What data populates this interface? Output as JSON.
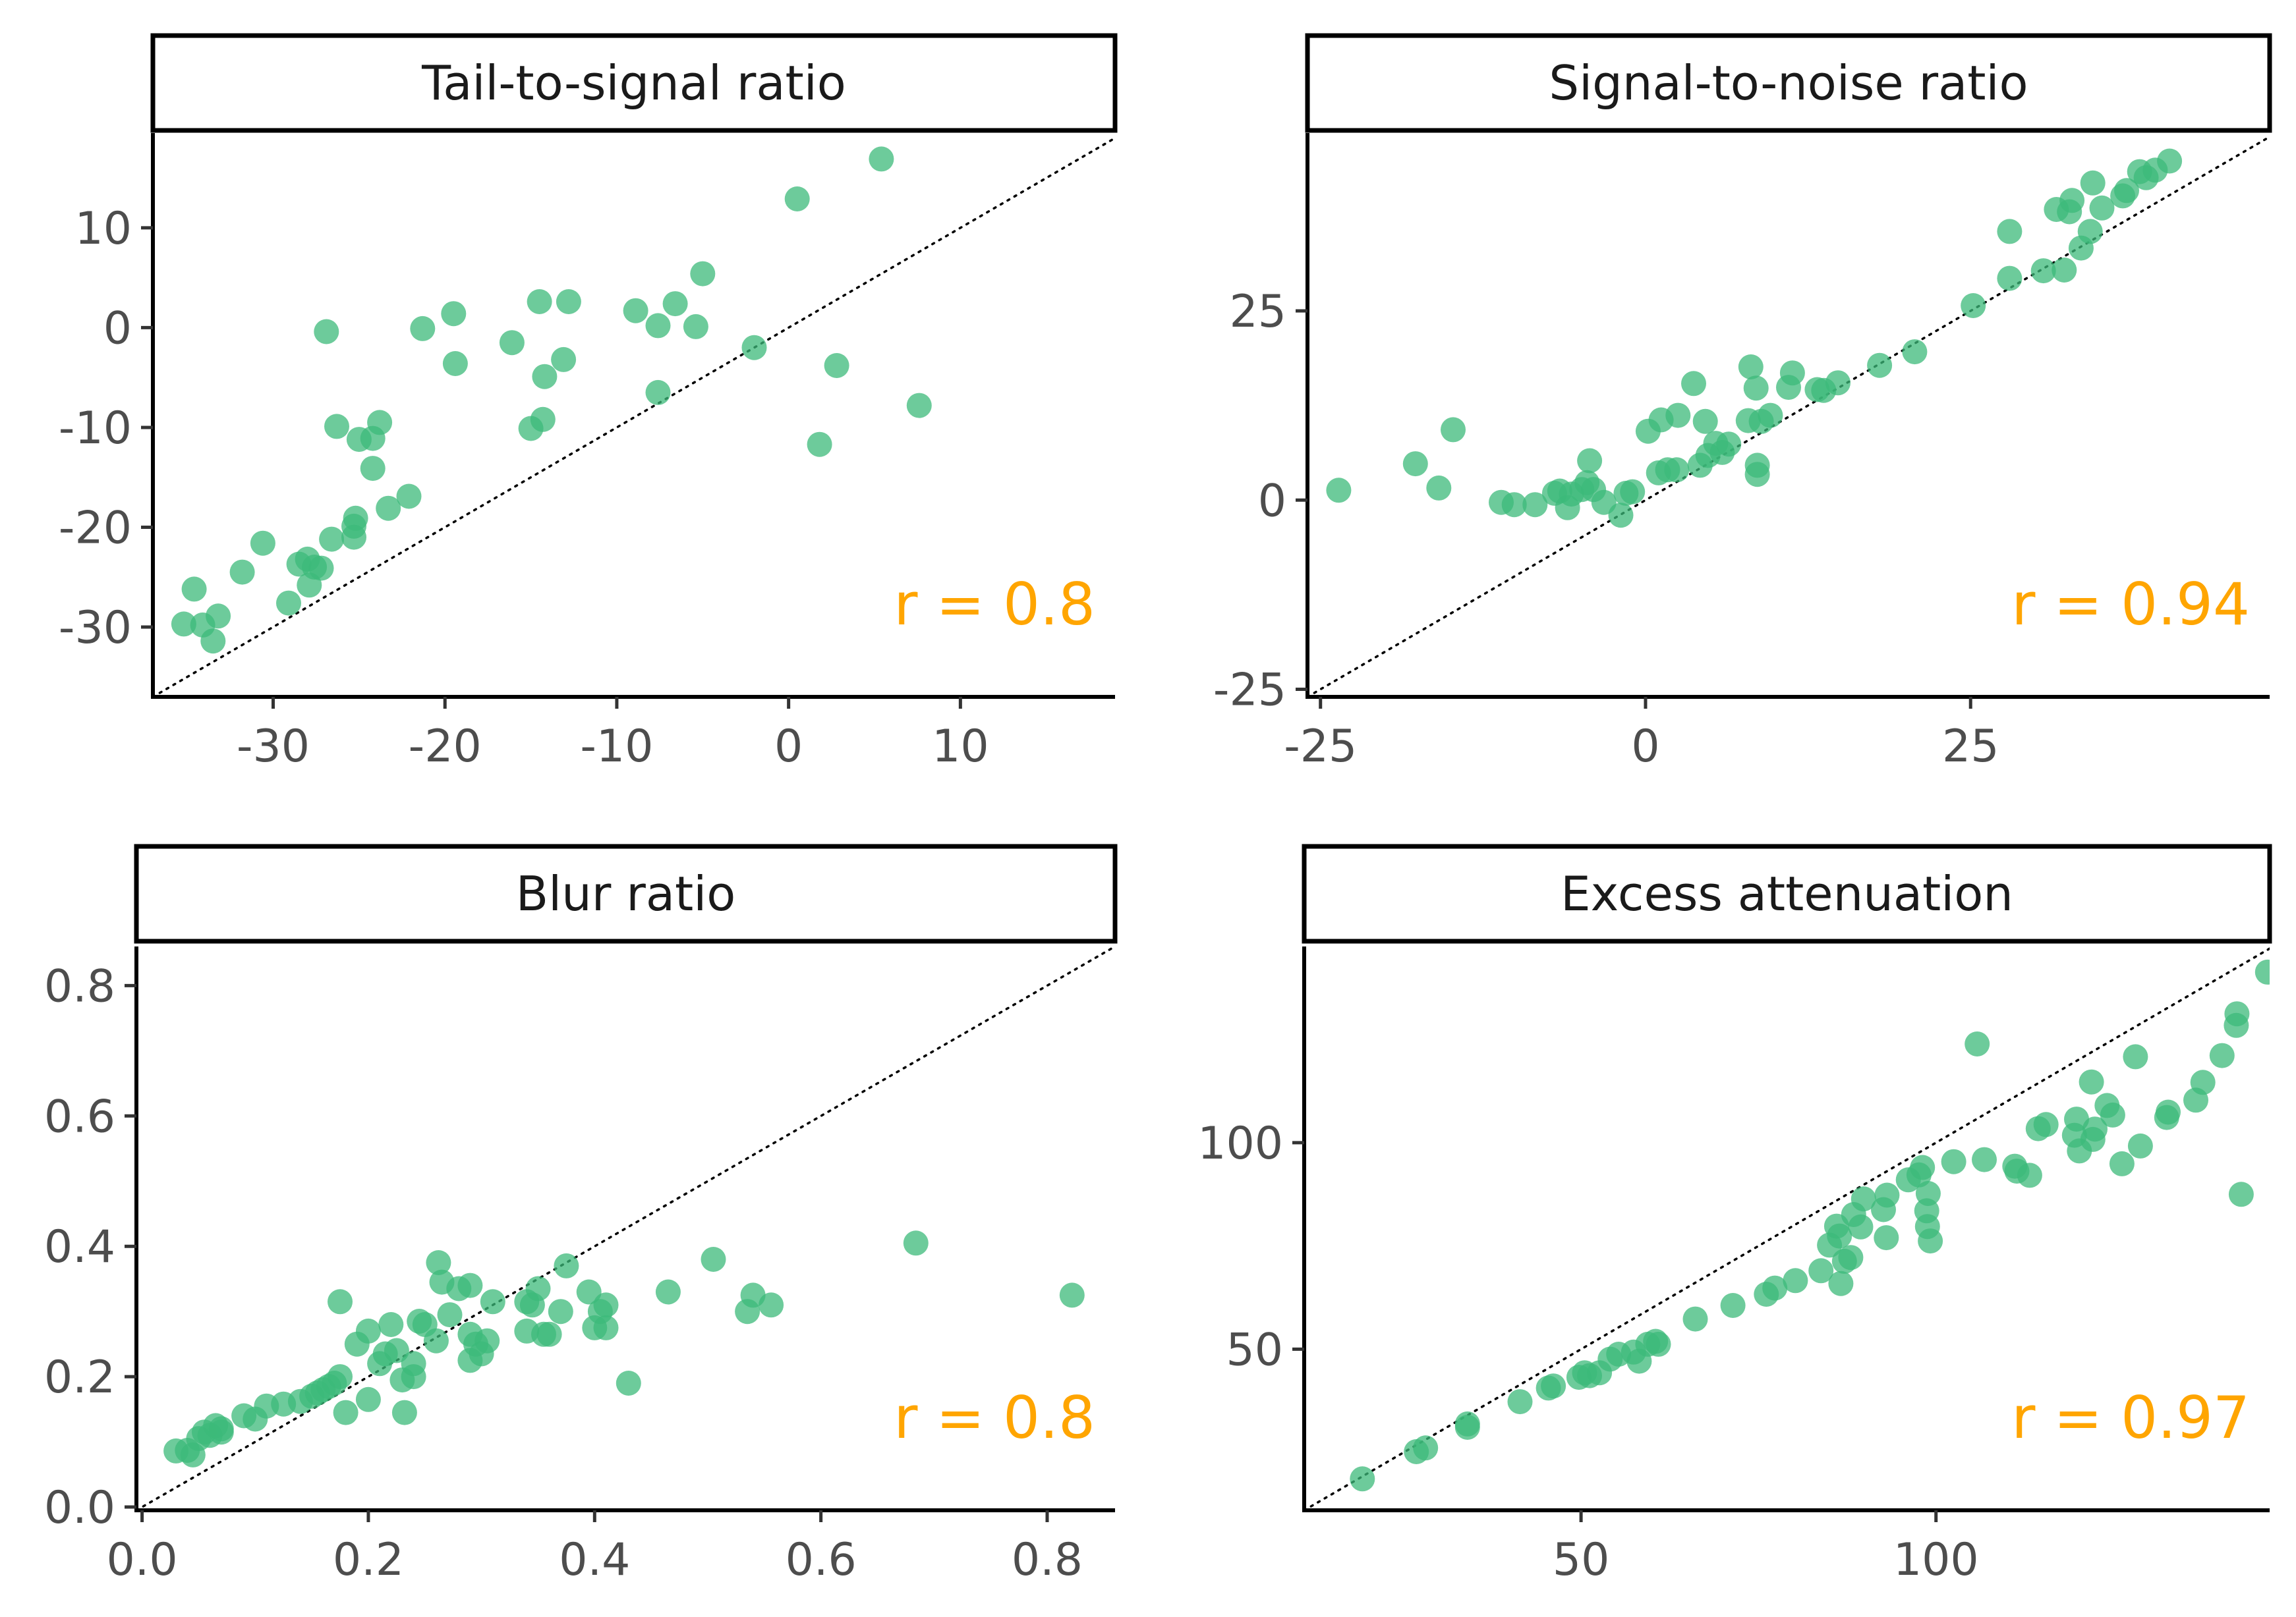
{
  "style": {
    "point_color": "#3cba7a",
    "point_opacity": 0.75,
    "annotation_color": "#ffa500",
    "axis_color": "#000000",
    "tick_label_color": "#4d4d4d"
  },
  "chart_data": [
    {
      "type": "scatter",
      "title": "Tail-to-signal ratio",
      "annotation": "r = 0.8",
      "reference_line": "y = x",
      "xlim": [
        -37,
        19
      ],
      "ylim": [
        -37,
        19.5
      ],
      "xticks": [
        -30,
        -20,
        -10,
        0,
        10
      ],
      "yticks": [
        -30,
        -20,
        -10,
        0,
        10
      ],
      "xtick_labels": [
        "-30",
        "-20",
        "-10",
        "0",
        "10"
      ],
      "ytick_labels": [
        "-30",
        "-20",
        "-10",
        "0",
        "10"
      ],
      "points": [
        [
          -35.2,
          -29.7
        ],
        [
          -34.6,
          -26.2
        ],
        [
          -34.1,
          -29.8
        ],
        [
          -33.5,
          -31.4
        ],
        [
          -33.2,
          -28.9
        ],
        [
          -31.8,
          -24.5
        ],
        [
          -30.6,
          -21.6
        ],
        [
          -29.1,
          -27.6
        ],
        [
          -28.5,
          -23.7
        ],
        [
          -28.0,
          -23.2
        ],
        [
          -27.9,
          -25.8
        ],
        [
          -27.6,
          -24.0
        ],
        [
          -27.2,
          -24.1
        ],
        [
          -26.9,
          -0.4
        ],
        [
          -26.6,
          -21.2
        ],
        [
          -26.3,
          -9.9
        ],
        [
          -25.3,
          -21.0
        ],
        [
          -25.3,
          -19.9
        ],
        [
          -25.2,
          -19.1
        ],
        [
          -25.0,
          -11.2
        ],
        [
          -24.2,
          -11.1
        ],
        [
          -24.2,
          -14.1
        ],
        [
          -23.8,
          -9.5
        ],
        [
          -23.3,
          -18.1
        ],
        [
          -22.1,
          -16.9
        ],
        [
          -21.3,
          -0.1
        ],
        [
          -19.5,
          1.4
        ],
        [
          -19.4,
          -3.6
        ],
        [
          -16.1,
          -1.5
        ],
        [
          -15.0,
          -10.1
        ],
        [
          -14.5,
          2.6
        ],
        [
          -14.3,
          -9.2
        ],
        [
          -14.2,
          -4.9
        ],
        [
          -13.1,
          -3.2
        ],
        [
          -12.8,
          2.6
        ],
        [
          -8.9,
          1.7
        ],
        [
          -7.6,
          0.2
        ],
        [
          -7.6,
          -6.5
        ],
        [
          -6.6,
          2.4
        ],
        [
          -5.4,
          0.1
        ],
        [
          -5.0,
          5.4
        ],
        [
          -2.0,
          -2.0
        ],
        [
          0.5,
          12.9
        ],
        [
          1.8,
          -11.7
        ],
        [
          2.8,
          -3.8
        ],
        [
          5.4,
          16.9
        ],
        [
          7.6,
          -7.8
        ]
      ]
    },
    {
      "type": "scatter",
      "title": "Signal-to-noise ratio",
      "annotation": "r = 0.94",
      "reference_line": "y = x",
      "xlim": [
        -26,
        48
      ],
      "ylim": [
        -26,
        48.5
      ],
      "xticks": [
        -25,
        0,
        25
      ],
      "yticks": [
        -25,
        0,
        25
      ],
      "xtick_labels": [
        "-25",
        "0",
        "25"
      ],
      "ytick_labels": [
        "-25",
        "0",
        "25"
      ],
      "points": [
        [
          -23.6,
          1.3
        ],
        [
          -17.7,
          4.8
        ],
        [
          -15.9,
          1.6
        ],
        [
          -14.8,
          9.3
        ],
        [
          -11.1,
          -0.3
        ],
        [
          -10.1,
          -0.6
        ],
        [
          -8.5,
          -0.6
        ],
        [
          -7.0,
          0.9
        ],
        [
          -6.6,
          1.2
        ],
        [
          -6.0,
          -1.0
        ],
        [
          -5.7,
          0.8
        ],
        [
          -4.9,
          1.4
        ],
        [
          -4.5,
          2.3
        ],
        [
          -4.3,
          5.2
        ],
        [
          -4.0,
          1.4
        ],
        [
          -3.2,
          -0.3
        ],
        [
          -1.9,
          -2.0
        ],
        [
          -1.5,
          0.9
        ],
        [
          -1.0,
          1.1
        ],
        [
          0.2,
          9.1
        ],
        [
          1.0,
          3.6
        ],
        [
          1.2,
          10.6
        ],
        [
          1.7,
          4.0
        ],
        [
          2.4,
          4.0
        ],
        [
          2.5,
          11.2
        ],
        [
          3.7,
          15.4
        ],
        [
          4.2,
          4.6
        ],
        [
          4.6,
          10.4
        ],
        [
          4.8,
          5.9
        ],
        [
          5.4,
          7.5
        ],
        [
          5.9,
          6.3
        ],
        [
          6.4,
          7.4
        ],
        [
          7.9,
          10.5
        ],
        [
          8.1,
          17.6
        ],
        [
          8.5,
          14.8
        ],
        [
          8.6,
          3.4
        ],
        [
          8.6,
          4.6
        ],
        [
          8.9,
          10.4
        ],
        [
          9.6,
          11.2
        ],
        [
          11.0,
          14.9
        ],
        [
          11.3,
          16.8
        ],
        [
          13.2,
          14.6
        ],
        [
          13.7,
          14.5
        ],
        [
          14.8,
          15.5
        ],
        [
          18.0,
          17.8
        ],
        [
          20.7,
          19.6
        ],
        [
          25.2,
          25.7
        ],
        [
          28.0,
          29.3
        ],
        [
          28.0,
          35.5
        ],
        [
          30.6,
          30.3
        ],
        [
          31.6,
          38.4
        ],
        [
          32.2,
          30.4
        ],
        [
          32.6,
          38.1
        ],
        [
          32.8,
          39.6
        ],
        [
          33.5,
          33.3
        ],
        [
          34.2,
          35.5
        ],
        [
          34.4,
          41.9
        ],
        [
          35.1,
          38.6
        ],
        [
          36.7,
          40.2
        ],
        [
          37.0,
          40.9
        ],
        [
          38.0,
          43.4
        ],
        [
          38.5,
          42.6
        ],
        [
          39.2,
          43.6
        ],
        [
          40.3,
          44.8
        ]
      ]
    },
    {
      "type": "scatter",
      "title": "Blur ratio",
      "annotation": "r = 0.8",
      "reference_line": "y = x",
      "xlim": [
        -0.005,
        0.86
      ],
      "ylim": [
        -0.005,
        0.86
      ],
      "xticks": [
        0.0,
        0.2,
        0.4,
        0.6,
        0.8
      ],
      "yticks": [
        0.0,
        0.2,
        0.4,
        0.6,
        0.8
      ],
      "xtick_labels": [
        "0.0",
        "0.2",
        "0.4",
        "0.6",
        "0.8"
      ],
      "ytick_labels": [
        "0.0",
        "0.2",
        "0.4",
        "0.6",
        "0.8"
      ],
      "points": [
        [
          0.03,
          0.086
        ],
        [
          0.04,
          0.087
        ],
        [
          0.045,
          0.08
        ],
        [
          0.05,
          0.105
        ],
        [
          0.055,
          0.115
        ],
        [
          0.06,
          0.11
        ],
        [
          0.065,
          0.125
        ],
        [
          0.07,
          0.12
        ],
        [
          0.07,
          0.115
        ],
        [
          0.09,
          0.14
        ],
        [
          0.1,
          0.135
        ],
        [
          0.11,
          0.155
        ],
        [
          0.125,
          0.158
        ],
        [
          0.14,
          0.162
        ],
        [
          0.15,
          0.17
        ],
        [
          0.155,
          0.175
        ],
        [
          0.16,
          0.18
        ],
        [
          0.165,
          0.185
        ],
        [
          0.17,
          0.19
        ],
        [
          0.175,
          0.2
        ],
        [
          0.175,
          0.315
        ],
        [
          0.18,
          0.145
        ],
        [
          0.19,
          0.25
        ],
        [
          0.2,
          0.165
        ],
        [
          0.2,
          0.27
        ],
        [
          0.21,
          0.22
        ],
        [
          0.215,
          0.235
        ],
        [
          0.22,
          0.28
        ],
        [
          0.225,
          0.24
        ],
        [
          0.23,
          0.195
        ],
        [
          0.232,
          0.145
        ],
        [
          0.24,
          0.2
        ],
        [
          0.24,
          0.22
        ],
        [
          0.245,
          0.285
        ],
        [
          0.25,
          0.28
        ],
        [
          0.26,
          0.255
        ],
        [
          0.262,
          0.375
        ],
        [
          0.265,
          0.345
        ],
        [
          0.272,
          0.295
        ],
        [
          0.28,
          0.335
        ],
        [
          0.29,
          0.34
        ],
        [
          0.29,
          0.265
        ],
        [
          0.29,
          0.225
        ],
        [
          0.295,
          0.25
        ],
        [
          0.3,
          0.235
        ],
        [
          0.305,
          0.255
        ],
        [
          0.31,
          0.315
        ],
        [
          0.34,
          0.27
        ],
        [
          0.34,
          0.315
        ],
        [
          0.345,
          0.31
        ],
        [
          0.35,
          0.335
        ],
        [
          0.355,
          0.265
        ],
        [
          0.36,
          0.265
        ],
        [
          0.37,
          0.3
        ],
        [
          0.375,
          0.37
        ],
        [
          0.395,
          0.33
        ],
        [
          0.4,
          0.275
        ],
        [
          0.405,
          0.3
        ],
        [
          0.41,
          0.31
        ],
        [
          0.41,
          0.275
        ],
        [
          0.43,
          0.19
        ],
        [
          0.465,
          0.33
        ],
        [
          0.505,
          0.38
        ],
        [
          0.535,
          0.3
        ],
        [
          0.54,
          0.325
        ],
        [
          0.556,
          0.31
        ],
        [
          0.684,
          0.405
        ],
        [
          0.822,
          0.325
        ]
      ]
    },
    {
      "type": "scatter",
      "title": "Excess attenuation",
      "annotation": "r = 0.97",
      "reference_line": "y = x",
      "xlim": [
        11,
        147
      ],
      "ylim": [
        11,
        147.5
      ],
      "xticks": [
        50,
        100
      ],
      "yticks": [
        50,
        100
      ],
      "xtick_labels": [
        "50",
        "100"
      ],
      "ytick_labels": [
        "50",
        "100"
      ],
      "points": [
        [
          19.2,
          18.6
        ],
        [
          26.8,
          25.2
        ],
        [
          28.1,
          26.1
        ],
        [
          34.0,
          31.1
        ],
        [
          34.0,
          31.9
        ],
        [
          41.4,
          37.3
        ],
        [
          45.4,
          40.6
        ],
        [
          46.1,
          41.1
        ],
        [
          49.7,
          43.2
        ],
        [
          50.5,
          44.3
        ],
        [
          51.2,
          43.6
        ],
        [
          52.6,
          44.3
        ],
        [
          54.1,
          47.6
        ],
        [
          55.3,
          48.8
        ],
        [
          57.4,
          49.3
        ],
        [
          58.2,
          47.1
        ],
        [
          59.4,
          51.2
        ],
        [
          60.5,
          51.9
        ],
        [
          60.9,
          51.2
        ],
        [
          66.1,
          57.3
        ],
        [
          71.4,
          60.6
        ],
        [
          76.1,
          63.3
        ],
        [
          77.3,
          64.8
        ],
        [
          80.2,
          66.6
        ],
        [
          83.8,
          69.0
        ],
        [
          85.0,
          75.2
        ],
        [
          86.0,
          79.8
        ],
        [
          86.4,
          77.4
        ],
        [
          86.6,
          65.9
        ],
        [
          87.1,
          71.3
        ],
        [
          88.0,
          72.2
        ],
        [
          88.4,
          82.6
        ],
        [
          89.4,
          79.6
        ],
        [
          89.8,
          86.4
        ],
        [
          92.6,
          83.8
        ],
        [
          93.0,
          77.0
        ],
        [
          93.1,
          87.3
        ],
        [
          96.1,
          91.0
        ],
        [
          97.6,
          92.2
        ],
        [
          98.1,
          94.0
        ],
        [
          98.7,
          83.5
        ],
        [
          98.8,
          79.7
        ],
        [
          98.9,
          87.7
        ],
        [
          99.2,
          76.2
        ],
        [
          102.5,
          95.4
        ],
        [
          105.8,
          123.9
        ],
        [
          106.8,
          95.9
        ],
        [
          111.1,
          94.3
        ],
        [
          111.4,
          93.1
        ],
        [
          113.2,
          92.1
        ],
        [
          114.4,
          103.4
        ],
        [
          115.5,
          104.4
        ],
        [
          119.5,
          101.8
        ],
        [
          119.8,
          105.7
        ],
        [
          120.2,
          98.0
        ],
        [
          121.9,
          114.7
        ],
        [
          122.1,
          100.8
        ],
        [
          122.4,
          103.3
        ],
        [
          124.1,
          109.0
        ],
        [
          124.9,
          106.7
        ],
        [
          126.2,
          94.9
        ],
        [
          128.1,
          120.8
        ],
        [
          128.8,
          99.2
        ],
        [
          132.5,
          106.1
        ],
        [
          132.7,
          107.4
        ],
        [
          136.6,
          110.3
        ],
        [
          137.6,
          114.6
        ],
        [
          140.3,
          121.1
        ],
        [
          142.3,
          128.4
        ],
        [
          142.4,
          131.2
        ],
        [
          143.0,
          87.5
        ],
        [
          146.7,
          141.3
        ]
      ]
    }
  ]
}
